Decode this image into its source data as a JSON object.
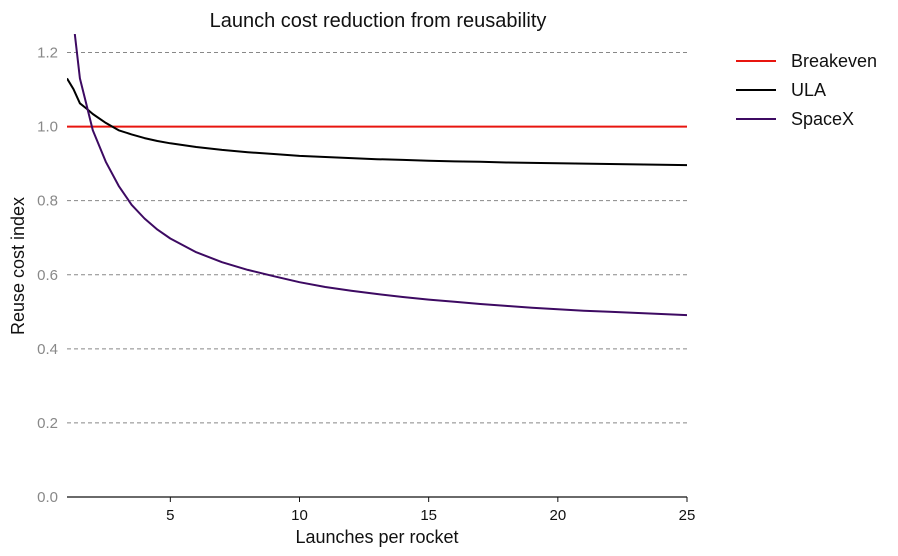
{
  "chart_data": {
    "type": "line",
    "title": "Launch cost reduction from reusability",
    "xlabel": "Launches per rocket",
    "ylabel": "Reuse cost index",
    "xlim": [
      1,
      25
    ],
    "ylim": [
      0,
      1.25
    ],
    "xticks": [
      "5",
      "10",
      "15",
      "20",
      "25"
    ],
    "yticks": [
      "0.0",
      "0.2",
      "0.4",
      "0.6",
      "0.8",
      "1.0",
      "1.2"
    ],
    "grid": "horizontal-dashed",
    "legend_position": "outside-top-right",
    "series": [
      {
        "name": "Breakeven",
        "color": "#e8150f",
        "x": [
          1,
          25
        ],
        "y": [
          1.0,
          1.0
        ]
      },
      {
        "name": "ULA",
        "color": "#000000",
        "x": [
          1,
          1.25,
          1.5,
          1.75,
          2,
          2.5,
          3,
          3.5,
          4,
          4.5,
          5,
          6,
          7,
          8,
          9,
          10,
          11,
          12,
          13,
          14,
          15,
          16,
          17,
          18,
          19,
          20,
          21,
          22,
          23,
          24,
          25
        ],
        "y": [
          1.13,
          1.101,
          1.063,
          1.049,
          1.034,
          1.01,
          0.99,
          0.979,
          0.969,
          0.961,
          0.955,
          0.945,
          0.937,
          0.931,
          0.926,
          0.921,
          0.918,
          0.915,
          0.912,
          0.91,
          0.908,
          0.906,
          0.905,
          0.903,
          0.902,
          0.901,
          0.9,
          0.899,
          0.898,
          0.897,
          0.896
        ]
      },
      {
        "name": "SpaceX",
        "color": "#3d0a62",
        "x": [
          1.3,
          1.5,
          1.75,
          2,
          2.5,
          3,
          3.5,
          4,
          4.5,
          5,
          6,
          7,
          8,
          9,
          10,
          11,
          12,
          13,
          14,
          15,
          16,
          17,
          18,
          19,
          20,
          21,
          22,
          23,
          24,
          25
        ],
        "y": [
          1.25,
          1.13,
          1.06,
          0.99,
          0.905,
          0.84,
          0.789,
          0.752,
          0.722,
          0.698,
          0.661,
          0.634,
          0.613,
          0.596,
          0.58,
          0.567,
          0.557,
          0.548,
          0.54,
          0.533,
          0.527,
          0.521,
          0.516,
          0.511,
          0.507,
          0.503,
          0.5,
          0.497,
          0.494,
          0.491
        ]
      }
    ]
  }
}
